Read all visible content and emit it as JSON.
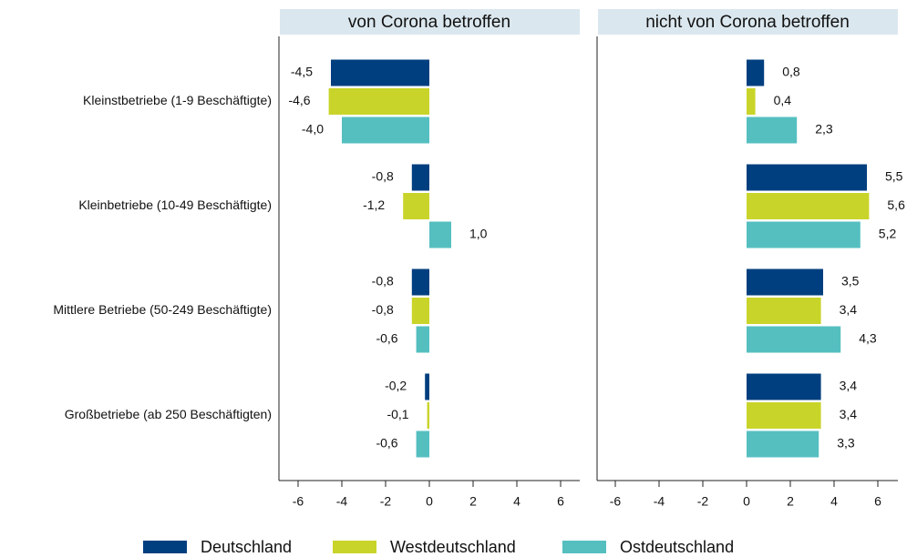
{
  "chart_data": [
    {
      "type": "bar",
      "title": "von Corona betroffen",
      "categories": [
        "Kleinstbetriebe (1-9 Beschäftigte)",
        "Kleinbetriebe (10-49 Beschäftigte)",
        "Mittlere Betriebe (50-249 Beschäftigte)",
        "Großbetriebe (ab 250 Beschäftigten)"
      ],
      "series": [
        {
          "name": "Deutschland",
          "color": "#003f7f",
          "values": [
            -4.5,
            -0.8,
            -0.8,
            -0.2
          ],
          "value_labels": [
            "-4,5",
            "-0,8",
            "-0,8",
            "-0,2"
          ]
        },
        {
          "name": "Westdeutschland",
          "color": "#c9d42a",
          "values": [
            -4.6,
            -1.2,
            -0.8,
            -0.1
          ],
          "value_labels": [
            "-4,6",
            "-1,2",
            "-0,8",
            "-0,1"
          ]
        },
        {
          "name": "Ostdeutschland",
          "color": "#55bfc0",
          "values": [
            -4.0,
            1.0,
            -0.6,
            -0.6
          ],
          "value_labels": [
            "-4,0",
            "1,0",
            "-0,6",
            "-0,6"
          ]
        }
      ],
      "xlim": [
        -7,
        7
      ],
      "xticks": [
        -6,
        -4,
        -2,
        0,
        2,
        4,
        6
      ]
    },
    {
      "type": "bar",
      "title": "nicht von Corona betroffen",
      "series": [
        {
          "name": "Deutschland",
          "color": "#003f7f",
          "values": [
            0.8,
            5.5,
            3.5,
            3.4
          ],
          "value_labels": [
            "0,8",
            "5,5",
            "3,5",
            "3,4"
          ]
        },
        {
          "name": "Westdeutschland",
          "color": "#c9d42a",
          "values": [
            0.4,
            5.6,
            3.4,
            3.4
          ],
          "value_labels": [
            "0,4",
            "5,6",
            "3,4",
            "3,4"
          ]
        },
        {
          "name": "Ostdeutschland",
          "color": "#55bfc0",
          "values": [
            2.3,
            5.2,
            4.3,
            3.3
          ],
          "value_labels": [
            "2,3",
            "5,2",
            "4,3",
            "3,3"
          ]
        }
      ],
      "xlim": [
        -7,
        7
      ],
      "xticks": [
        -6,
        -4,
        -2,
        0,
        2,
        4,
        6
      ]
    }
  ]
}
